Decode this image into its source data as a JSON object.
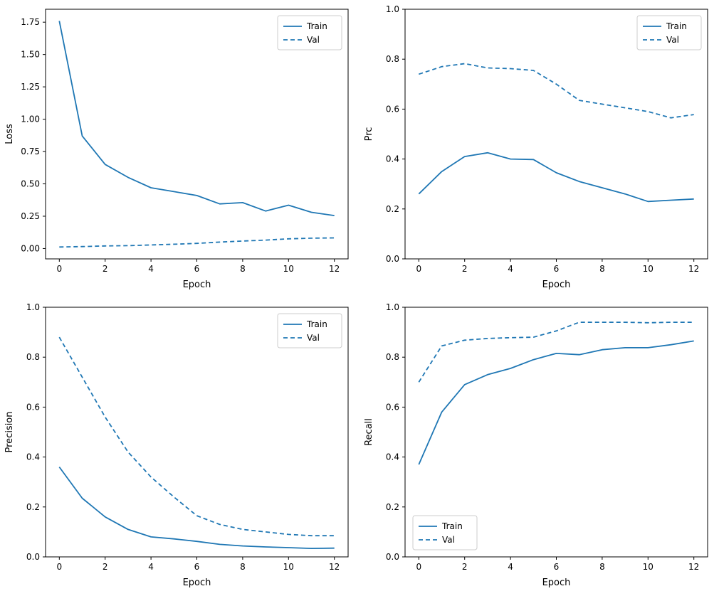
{
  "figure": {
    "background": "#ffffff",
    "line_color": "#1f77b4",
    "legend_border_color": "#cccccc",
    "axis_color": "#000000"
  },
  "chart_data": [
    {
      "type": "line",
      "name": "loss",
      "xlabel": "Epoch",
      "ylabel": "Loss",
      "xlim": [
        -0.6,
        12.6
      ],
      "ylim": [
        -0.08,
        1.85
      ],
      "xticks": [
        0,
        2,
        4,
        6,
        8,
        10,
        12
      ],
      "yticks": [
        0.0,
        0.25,
        0.5,
        0.75,
        1.0,
        1.25,
        1.5,
        1.75
      ],
      "ytick_labels": [
        "0.00",
        "0.25",
        "0.50",
        "0.75",
        "1.00",
        "1.25",
        "1.50",
        "1.75"
      ],
      "legend_position": "upper-right",
      "grid": false,
      "x": [
        0,
        1,
        2,
        3,
        4,
        5,
        6,
        7,
        8,
        9,
        10,
        11,
        12
      ],
      "series": [
        {
          "name": "Train",
          "style": "solid",
          "values": [
            1.76,
            0.87,
            0.65,
            0.55,
            0.47,
            0.44,
            0.41,
            0.345,
            0.355,
            0.29,
            0.335,
            0.28,
            0.255
          ]
        },
        {
          "name": "Val",
          "style": "dashed",
          "values": [
            0.012,
            0.015,
            0.02,
            0.022,
            0.028,
            0.033,
            0.04,
            0.05,
            0.058,
            0.065,
            0.075,
            0.08,
            0.082
          ]
        }
      ]
    },
    {
      "type": "line",
      "name": "prc",
      "xlabel": "Epoch",
      "ylabel": "Prc",
      "xlim": [
        -0.6,
        12.6
      ],
      "ylim": [
        0,
        1
      ],
      "xticks": [
        0,
        2,
        4,
        6,
        8,
        10,
        12
      ],
      "yticks": [
        0.0,
        0.2,
        0.4,
        0.6,
        0.8,
        1.0
      ],
      "ytick_labels": [
        "0.0",
        "0.2",
        "0.4",
        "0.6",
        "0.8",
        "1.0"
      ],
      "legend_position": "upper-right",
      "grid": false,
      "x": [
        0,
        1,
        2,
        3,
        4,
        5,
        6,
        7,
        8,
        9,
        10,
        11,
        12
      ],
      "series": [
        {
          "name": "Train",
          "style": "solid",
          "values": [
            0.26,
            0.35,
            0.41,
            0.425,
            0.4,
            0.398,
            0.345,
            0.31,
            0.285,
            0.26,
            0.23,
            0.235,
            0.24
          ]
        },
        {
          "name": "Val",
          "style": "dashed",
          "values": [
            0.74,
            0.77,
            0.782,
            0.765,
            0.762,
            0.755,
            0.7,
            0.635,
            0.62,
            0.605,
            0.59,
            0.565,
            0.578
          ]
        }
      ]
    },
    {
      "type": "line",
      "name": "precision",
      "xlabel": "Epoch",
      "ylabel": "Precision",
      "xlim": [
        -0.6,
        12.6
      ],
      "ylim": [
        0,
        1
      ],
      "xticks": [
        0,
        2,
        4,
        6,
        8,
        10,
        12
      ],
      "yticks": [
        0.0,
        0.2,
        0.4,
        0.6,
        0.8,
        1.0
      ],
      "ytick_labels": [
        "0.0",
        "0.2",
        "0.4",
        "0.6",
        "0.8",
        "1.0"
      ],
      "legend_position": "upper-right",
      "grid": false,
      "x": [
        0,
        1,
        2,
        3,
        4,
        5,
        6,
        7,
        8,
        9,
        10,
        11,
        12
      ],
      "series": [
        {
          "name": "Train",
          "style": "solid",
          "values": [
            0.36,
            0.235,
            0.16,
            0.11,
            0.08,
            0.072,
            0.062,
            0.05,
            0.044,
            0.04,
            0.037,
            0.034,
            0.035
          ]
        },
        {
          "name": "Val",
          "style": "dashed",
          "values": [
            0.88,
            0.72,
            0.56,
            0.42,
            0.32,
            0.24,
            0.165,
            0.13,
            0.11,
            0.1,
            0.09,
            0.085,
            0.085
          ]
        }
      ]
    },
    {
      "type": "line",
      "name": "recall",
      "xlabel": "Epoch",
      "ylabel": "Recall",
      "xlim": [
        -0.6,
        12.6
      ],
      "ylim": [
        0,
        1
      ],
      "xticks": [
        0,
        2,
        4,
        6,
        8,
        10,
        12
      ],
      "yticks": [
        0.0,
        0.2,
        0.4,
        0.6,
        0.8,
        1.0
      ],
      "ytick_labels": [
        "0.0",
        "0.2",
        "0.4",
        "0.6",
        "0.8",
        "1.0"
      ],
      "legend_position": "lower-left",
      "grid": false,
      "x": [
        0,
        1,
        2,
        3,
        4,
        5,
        6,
        7,
        8,
        9,
        10,
        11,
        12
      ],
      "series": [
        {
          "name": "Train",
          "style": "solid",
          "values": [
            0.37,
            0.58,
            0.69,
            0.73,
            0.755,
            0.79,
            0.815,
            0.81,
            0.83,
            0.838,
            0.838,
            0.85,
            0.865
          ]
        },
        {
          "name": "Val",
          "style": "dashed",
          "values": [
            0.7,
            0.845,
            0.868,
            0.875,
            0.878,
            0.88,
            0.905,
            0.94,
            0.94,
            0.94,
            0.938,
            0.94,
            0.94
          ]
        }
      ]
    }
  ]
}
